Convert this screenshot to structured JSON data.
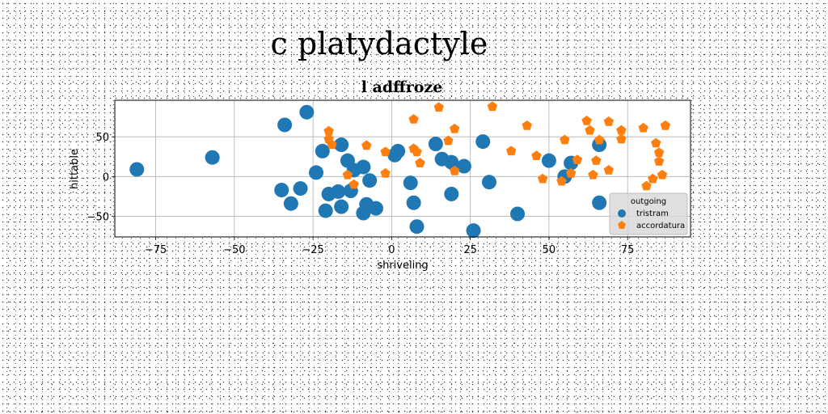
{
  "suptitle": "c platydactyle",
  "chart_data": {
    "type": "scatter",
    "title": "l adffroze",
    "xlabel": "shriveling",
    "ylabel": "hittable",
    "xlim": [
      -88,
      95
    ],
    "ylim": [
      -76,
      96
    ],
    "xticks": [
      -75,
      -50,
      -25,
      0,
      25,
      50,
      75
    ],
    "yticks": [
      -50,
      0,
      50
    ],
    "grid": true,
    "legend": {
      "title": "outgoing",
      "placement": "lower-right"
    },
    "series": [
      {
        "name": "tristram",
        "color": "#1f77b4",
        "marker": "circle",
        "points": [
          [
            -81,
            9
          ],
          [
            -57,
            24
          ],
          [
            -34,
            65
          ],
          [
            -27,
            81
          ],
          [
            -35,
            -17
          ],
          [
            -32,
            -34
          ],
          [
            -29,
            -15
          ],
          [
            -24,
            5
          ],
          [
            -22,
            32
          ],
          [
            -21,
            -43
          ],
          [
            -20,
            -22
          ],
          [
            -17,
            -19
          ],
          [
            -16,
            40
          ],
          [
            -16,
            -38
          ],
          [
            -14,
            20
          ],
          [
            -13,
            -18
          ],
          [
            -12,
            8
          ],
          [
            -9,
            12
          ],
          [
            -9,
            -46
          ],
          [
            -8,
            -35
          ],
          [
            -7,
            -5
          ],
          [
            -5,
            -40
          ],
          [
            1,
            27
          ],
          [
            2,
            32
          ],
          [
            6,
            -8
          ],
          [
            7,
            -33
          ],
          [
            8,
            -63
          ],
          [
            14,
            41
          ],
          [
            16,
            22
          ],
          [
            19,
            18
          ],
          [
            19,
            -22
          ],
          [
            23,
            13
          ],
          [
            26,
            -68
          ],
          [
            29,
            44
          ],
          [
            31,
            -7
          ],
          [
            40,
            -47
          ],
          [
            50,
            20
          ],
          [
            55,
            0
          ],
          [
            57,
            17
          ],
          [
            66,
            40
          ],
          [
            66,
            -33
          ]
        ]
      },
      {
        "name": "accordatura",
        "color": "#ff7f0e",
        "marker": "pentagon",
        "points": [
          [
            -20,
            57
          ],
          [
            -20,
            47
          ],
          [
            -19,
            40
          ],
          [
            -14,
            2
          ],
          [
            -12,
            -10
          ],
          [
            -8,
            39
          ],
          [
            -2,
            4
          ],
          [
            -2,
            31
          ],
          [
            7,
            72
          ],
          [
            7,
            35
          ],
          [
            8,
            31
          ],
          [
            9,
            17
          ],
          [
            15,
            87
          ],
          [
            18,
            45
          ],
          [
            20,
            60
          ],
          [
            20,
            7
          ],
          [
            32,
            88
          ],
          [
            38,
            32
          ],
          [
            43,
            64
          ],
          [
            46,
            26
          ],
          [
            48,
            -3
          ],
          [
            54,
            -6
          ],
          [
            55,
            46
          ],
          [
            57,
            4
          ],
          [
            59,
            21
          ],
          [
            62,
            70
          ],
          [
            63,
            58
          ],
          [
            64,
            2
          ],
          [
            65,
            20
          ],
          [
            66,
            46
          ],
          [
            69,
            69
          ],
          [
            69,
            8
          ],
          [
            73,
            58
          ],
          [
            73,
            47
          ],
          [
            80,
            61
          ],
          [
            81,
            -12
          ],
          [
            83,
            -3
          ],
          [
            84,
            42
          ],
          [
            85,
            30
          ],
          [
            85,
            19
          ],
          [
            86,
            2
          ],
          [
            87,
            64
          ]
        ]
      }
    ]
  }
}
